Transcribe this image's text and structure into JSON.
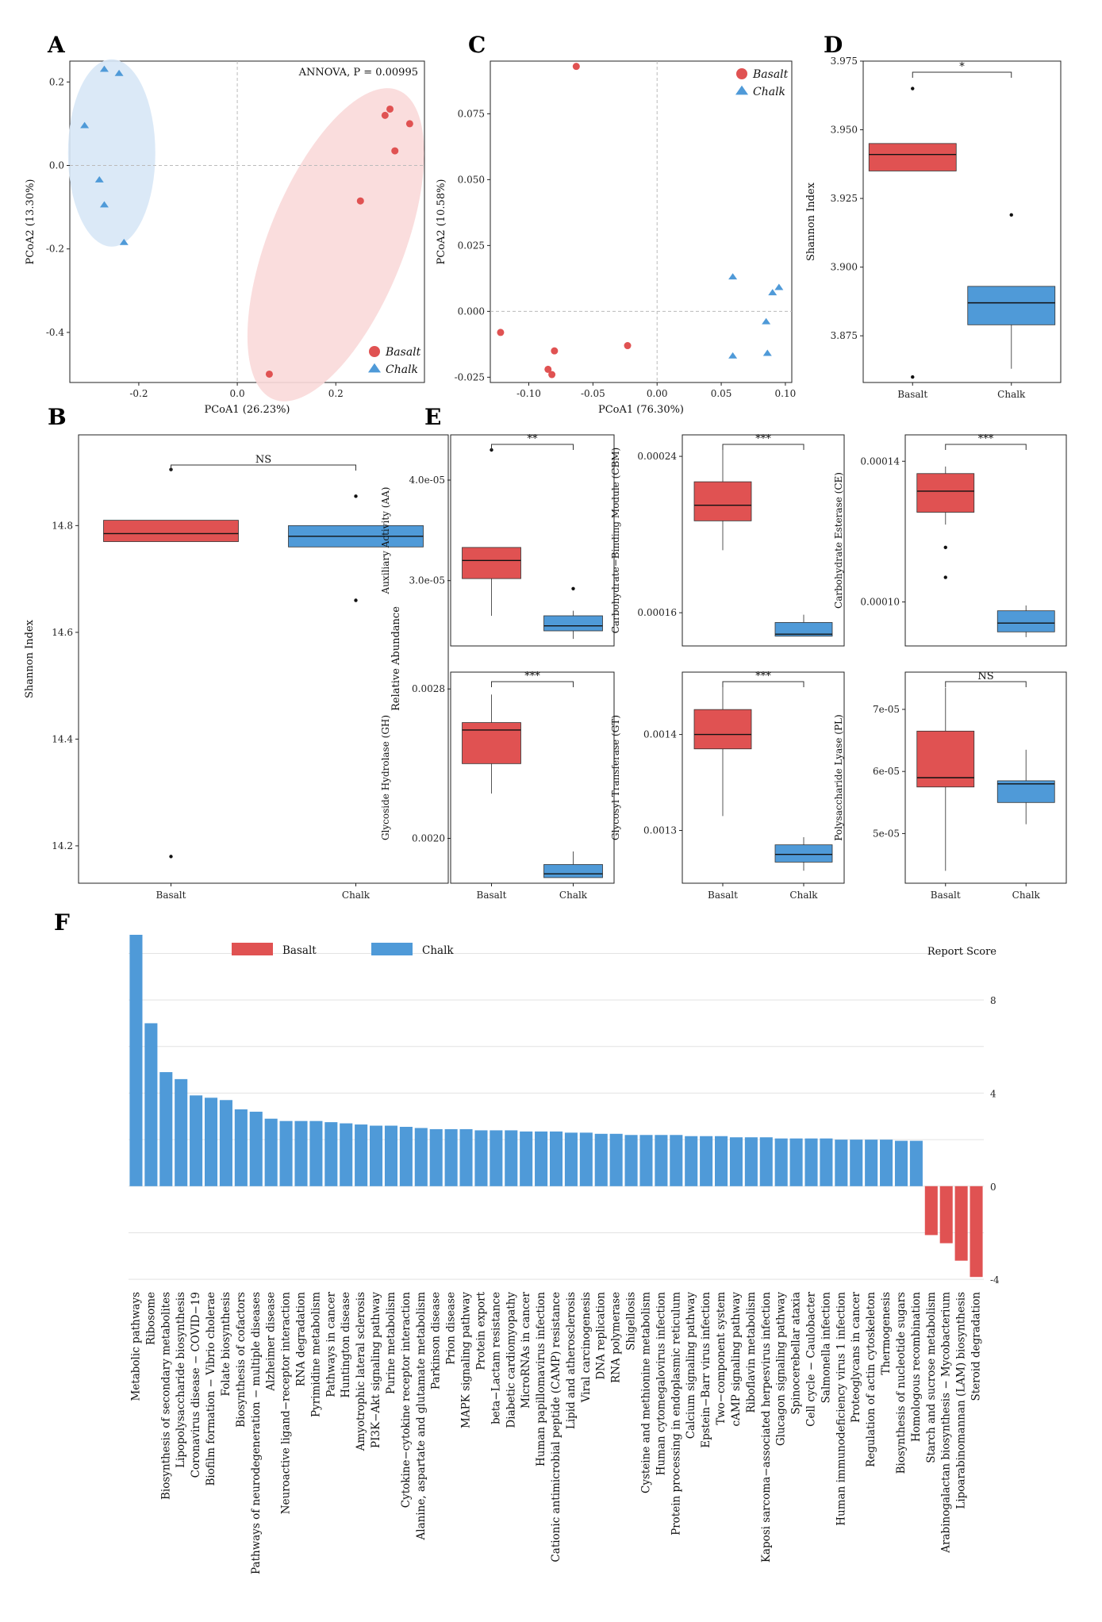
{
  "colors": {
    "basalt": "#e05252",
    "chalk": "#4f9ad8",
    "basalt_ellipse": "#f9d9d9",
    "chalk_ellipse": "#d7e7f6"
  },
  "panels": {
    "A": "A",
    "B": "B",
    "C": "C",
    "D": "D",
    "E": "E",
    "F": "F"
  },
  "chart_data": [
    {
      "id": "A",
      "type": "scatter",
      "annotation": "ANNOVA,  P = 0.00995",
      "xlabel": "PCoA1 (26.23%)",
      "ylabel": "PCoA2 (13.30%)",
      "xlim": [
        -0.34,
        0.38
      ],
      "ylim": [
        -0.52,
        0.25
      ],
      "xticks": [
        "-0.2",
        "0.0",
        "0.2"
      ],
      "yticks": [
        "0.2",
        "0.0",
        "-0.2",
        "-0.4"
      ],
      "xtick_values": [
        -0.2,
        0,
        0.2
      ],
      "ytick_values": [
        0.2,
        0,
        -0.2,
        -0.4
      ],
      "series": [
        {
          "name": "Basalt",
          "marker": "circle",
          "points": [
            [
              0.3,
              0.12
            ],
            [
              0.31,
              0.135
            ],
            [
              0.35,
              0.1
            ],
            [
              0.32,
              0.035
            ],
            [
              0.25,
              -0.085
            ],
            [
              0.065,
              -0.5
            ]
          ]
        },
        {
          "name": "Chalk",
          "marker": "triangle",
          "points": [
            [
              -0.27,
              0.23
            ],
            [
              -0.24,
              0.22
            ],
            [
              -0.31,
              0.095
            ],
            [
              -0.28,
              -0.035
            ],
            [
              -0.27,
              -0.095
            ],
            [
              -0.23,
              -0.185
            ]
          ]
        }
      ],
      "legend": [
        "Basalt",
        "Chalk"
      ]
    },
    {
      "id": "C",
      "type": "scatter",
      "xlabel": "PCoA1 (76.30%)",
      "ylabel": "PCoA2 (10.58%)",
      "xlim": [
        -0.13,
        0.105
      ],
      "ylim": [
        -0.027,
        0.095
      ],
      "xticks": [
        "-0.10",
        "-0.05",
        "0.00",
        "0.05",
        "0.10"
      ],
      "yticks": [
        "0.075",
        "0.050",
        "0.025",
        "0.000",
        "-0.025"
      ],
      "xtick_values": [
        -0.1,
        -0.05,
        0,
        0.05,
        0.1
      ],
      "ytick_values": [
        0.075,
        0.05,
        0.025,
        0,
        -0.025
      ],
      "series": [
        {
          "name": "Basalt",
          "marker": "circle",
          "points": [
            [
              -0.063,
              0.093
            ],
            [
              -0.122,
              -0.008
            ],
            [
              -0.08,
              -0.015
            ],
            [
              -0.085,
              -0.022
            ],
            [
              -0.082,
              -0.024
            ],
            [
              -0.023,
              -0.013
            ]
          ]
        },
        {
          "name": "Chalk",
          "marker": "triangle",
          "points": [
            [
              0.059,
              0.013
            ],
            [
              0.095,
              0.009
            ],
            [
              0.09,
              0.007
            ],
            [
              0.085,
              -0.004
            ],
            [
              0.059,
              -0.017
            ],
            [
              0.086,
              -0.016
            ]
          ]
        }
      ],
      "legend": [
        "Basalt",
        "Chalk"
      ]
    },
    {
      "id": "D",
      "type": "box",
      "ylabel": "Shannon Index",
      "categories": [
        "Basalt",
        "Chalk"
      ],
      "ylim": [
        3.858,
        3.975
      ],
      "yticks": [
        "3.975",
        "3.950",
        "3.925",
        "3.900",
        "3.875"
      ],
      "ytick_values": [
        3.975,
        3.95,
        3.925,
        3.9,
        3.875
      ],
      "significance": "*",
      "boxes": [
        {
          "q1": 3.935,
          "median": 3.941,
          "q3": 3.945,
          "lower": 3.935,
          "upper": 3.945,
          "outliers": [
            3.965,
            3.86
          ]
        },
        {
          "q1": 3.879,
          "median": 3.887,
          "q3": 3.893,
          "lower": 3.863,
          "upper": 3.893,
          "outliers": [
            3.919
          ]
        }
      ]
    },
    {
      "id": "B",
      "type": "box",
      "ylabel": "Shannon Index",
      "categories": [
        "Basalt",
        "Chalk"
      ],
      "ylim": [
        14.13,
        14.97
      ],
      "yticks": [
        "14.8",
        "14.6",
        "14.4",
        "14.2"
      ],
      "ytick_values": [
        14.8,
        14.6,
        14.4,
        14.2
      ],
      "significance": "NS",
      "boxes": [
        {
          "q1": 14.77,
          "median": 14.785,
          "q3": 14.81,
          "lower": 14.77,
          "upper": 14.81,
          "outliers": [
            14.905,
            14.18
          ]
        },
        {
          "q1": 14.76,
          "median": 14.78,
          "q3": 14.8,
          "lower": 14.76,
          "upper": 14.8,
          "outliers": [
            14.855,
            14.66
          ]
        }
      ]
    },
    {
      "id": "E1",
      "type": "box",
      "ylabel": "Auxiliary Activity (AA)",
      "categories": [
        "Basalt",
        "Chalk"
      ],
      "ylim": [
        2.35e-05,
        4.45e-05
      ],
      "yticks": [
        "4.0e-05",
        "3.0e-05"
      ],
      "ytick_values": [
        4e-05,
        3e-05
      ],
      "significance": "**",
      "boxes": [
        {
          "q1": 3.02e-05,
          "median": 3.2e-05,
          "q3": 3.33e-05,
          "lower": 2.65e-05,
          "upper": 3.33e-05,
          "outliers": [
            4.3e-05
          ]
        },
        {
          "q1": 2.5e-05,
          "median": 2.55e-05,
          "q3": 2.65e-05,
          "lower": 2.42e-05,
          "upper": 2.7e-05,
          "outliers": [
            2.92e-05
          ]
        }
      ]
    },
    {
      "id": "E2",
      "type": "box",
      "ylabel": "Carbohydrate−Binding Module (CBM)",
      "categories": [
        "Basalt",
        "Chalk"
      ],
      "ylim": [
        0.000143,
        0.000251
      ],
      "yticks": [
        "0.00024",
        "0.00016"
      ],
      "ytick_values": [
        0.00024,
        0.00016
      ],
      "significance": "***",
      "boxes": [
        {
          "q1": 0.000207,
          "median": 0.000215,
          "q3": 0.000227,
          "lower": 0.000192,
          "upper": 0.000244,
          "outliers": []
        },
        {
          "q1": 0.000148,
          "median": 0.000149,
          "q3": 0.000155,
          "lower": 0.000148,
          "upper": 0.000159,
          "outliers": []
        }
      ]
    },
    {
      "id": "E3",
      "type": "box",
      "ylabel": "Carbohydrate Esterase (CE)",
      "categories": [
        "Basalt",
        "Chalk"
      ],
      "ylim": [
        8.75e-05,
        0.0001475
      ],
      "yticks": [
        "0.00014",
        "0.00010"
      ],
      "ytick_values": [
        0.00014,
        0.0001
      ],
      "significance": "***",
      "boxes": [
        {
          "q1": 0.0001255,
          "median": 0.0001315,
          "q3": 0.0001365,
          "lower": 0.000122,
          "upper": 0.0001385,
          "outliers": [
            0.000107,
            0.0001155
          ]
        },
        {
          "q1": 9.15e-05,
          "median": 9.4e-05,
          "q3": 9.75e-05,
          "lower": 9e-05,
          "upper": 9.9e-05,
          "outliers": []
        }
      ]
    },
    {
      "id": "E4",
      "type": "box",
      "ylabel": "Glycoside Hydrolase (GH)",
      "categories": [
        "Basalt",
        "Chalk"
      ],
      "ylim": [
        0.00176,
        0.00289
      ],
      "yticks": [
        "0.0028",
        "0.0020"
      ],
      "ytick_values": [
        0.0028,
        0.002
      ],
      "significance": "***",
      "boxes": [
        {
          "q1": 0.0024,
          "median": 0.00258,
          "q3": 0.00262,
          "lower": 0.00224,
          "upper": 0.00277,
          "outliers": []
        },
        {
          "q1": 0.00179,
          "median": 0.00181,
          "q3": 0.00186,
          "lower": 0.00179,
          "upper": 0.00193,
          "outliers": []
        }
      ]
    },
    {
      "id": "E5",
      "type": "box",
      "ylabel": "Glycosyl Transferase (GT)",
      "categories": [
        "Basalt",
        "Chalk"
      ],
      "ylim": [
        0.001245,
        0.001465
      ],
      "yticks": [
        "0.0014",
        "0.0013"
      ],
      "ytick_values": [
        0.0014,
        0.0013
      ],
      "significance": "***",
      "boxes": [
        {
          "q1": 0.001385,
          "median": 0.0014,
          "q3": 0.001426,
          "lower": 0.001315,
          "upper": 0.001452,
          "outliers": []
        },
        {
          "q1": 0.001267,
          "median": 0.001275,
          "q3": 0.001285,
          "lower": 0.001258,
          "upper": 0.001293,
          "outliers": []
        }
      ]
    },
    {
      "id": "E6",
      "type": "box",
      "ylabel": "Polysaccharide Lyase (PL)",
      "categories": [
        "Basalt",
        "Chalk"
      ],
      "ylim": [
        4.2e-05,
        7.6e-05
      ],
      "yticks": [
        "7e-05",
        "6e-05",
        "5e-05"
      ],
      "ytick_values": [
        7e-05,
        6e-05,
        5e-05
      ],
      "significance": "NS",
      "boxes": [
        {
          "q1": 5.75e-05,
          "median": 5.9e-05,
          "q3": 6.65e-05,
          "lower": 4.4e-05,
          "upper": 7.35e-05,
          "outliers": []
        },
        {
          "q1": 5.5e-05,
          "median": 5.8e-05,
          "q3": 5.85e-05,
          "lower": 5.15e-05,
          "upper": 6.35e-05,
          "outliers": []
        }
      ]
    },
    {
      "id": "F",
      "type": "bar",
      "title": "Report Score",
      "legend": [
        "Basalt",
        "Chalk"
      ],
      "ylim": [
        -4.2,
        10.8
      ],
      "yticks": [
        "8",
        "4",
        "0",
        "-4"
      ],
      "ytick_values": [
        8,
        4,
        0,
        -4
      ],
      "categories": [
        "Metabolic pathways",
        "Ribosome",
        "Biosynthesis of secondary metabolites",
        "Lipopolysaccharide biosynthesis",
        "Coronavirus disease − COVID−19",
        "Biofilm formation − Vibrio cholerae",
        "Folate biosynthesis",
        "Biosynthesis of cofactors",
        "Pathways of neurodegeneration − multiple diseases",
        "Alzheimer disease",
        "Neuroactive ligand−receptor interaction",
        "RNA degradation",
        "Pyrimidine metabolism",
        "Pathways in cancer",
        "Huntington disease",
        "Amyotrophic lateral sclerosis",
        "PI3K−Akt signaling pathway",
        "Purine metabolism",
        "Cytokine−cytokine receptor interaction",
        "Alanine, aspartate and glutamate metabolism",
        "Parkinson disease",
        "Prion disease",
        "MAPK signaling pathway",
        "Protein export",
        "beta−Lactam resistance",
        "Diabetic cardiomyopathy",
        "MicroRNAs in cancer",
        "Human papillomavirus infection",
        "Cationic antimicrobial peptide (CAMP) resistance",
        "Lipid and atherosclerosis",
        "Viral carcinogenesis",
        "DNA replication",
        "RNA polymerase",
        "Shigellosis",
        "Cysteine and methionine metabolism",
        "Human cytomegalovirus infection",
        "Protein processing in endoplasmic reticulum",
        "Calcium signaling pathway",
        "Epstein−Barr virus infection",
        "Two−component system",
        "cAMP signaling pathway",
        "Riboflavin metabolism",
        "Kaposi sarcoma−associated herpesvirus infection",
        "Glucagon signaling pathway",
        "Spinocerebellar ataxia",
        "Cell cycle − Caulobacter",
        "Salmonella infection",
        "Human immunodeficiency virus 1 infection",
        "Proteoglycans in cancer",
        "Regulation of actin cytoskeleton",
        "Thermogenesis",
        "Biosynthesis of nucleotide sugars",
        "Homologous recombination",
        "Starch and sucrose metabolism",
        "Arabinogalactan biosynthesis − Mycobacterium",
        "Lipoarabinomannan (LAM) biosynthesis",
        "Steroid degradation"
      ],
      "values": [
        10.8,
        7.0,
        4.9,
        4.6,
        3.9,
        3.8,
        3.7,
        3.3,
        3.2,
        2.9,
        2.8,
        2.8,
        2.8,
        2.75,
        2.7,
        2.65,
        2.6,
        2.6,
        2.55,
        2.5,
        2.45,
        2.45,
        2.45,
        2.4,
        2.4,
        2.4,
        2.35,
        2.35,
        2.35,
        2.3,
        2.3,
        2.25,
        2.25,
        2.2,
        2.2,
        2.2,
        2.2,
        2.15,
        2.15,
        2.15,
        2.1,
        2.1,
        2.1,
        2.05,
        2.05,
        2.05,
        2.05,
        2.0,
        2.0,
        2.0,
        2.0,
        1.95,
        1.95,
        -2.1,
        -2.45,
        -3.2,
        -3.9
      ]
    }
  ]
}
